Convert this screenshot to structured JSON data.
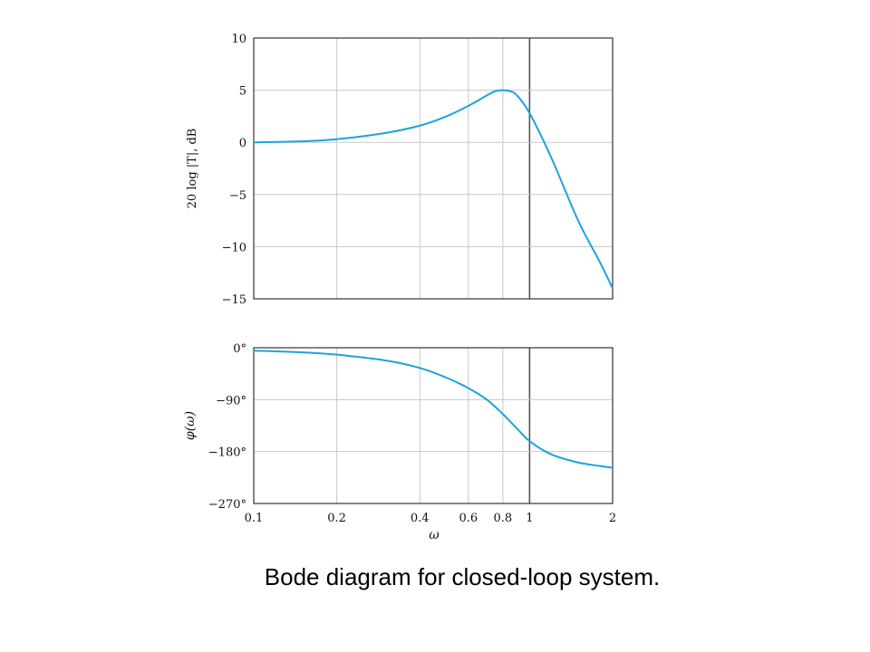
{
  "caption": "Bode diagram for closed-loop system.",
  "chart_data": [
    {
      "type": "line",
      "id": "magnitude",
      "xlabel": "",
      "ylabel": "20 log |T|, dB",
      "xscale": "log",
      "xlim": [
        0.1,
        2
      ],
      "ylim": [
        -15,
        10
      ],
      "xgrid": [
        0.1,
        0.2,
        0.4,
        0.6,
        0.8,
        1,
        2
      ],
      "ytick_values": [
        10,
        5,
        0,
        -5,
        -10,
        -15
      ],
      "ytick_labels": [
        "10",
        "5",
        "0",
        "−5",
        "−10",
        "−15"
      ],
      "grid": true,
      "color": "#1ca3dd",
      "x": [
        0.1,
        0.15,
        0.2,
        0.3,
        0.4,
        0.5,
        0.6,
        0.7,
        0.75,
        0.8,
        0.85,
        0.9,
        1.0,
        1.2,
        1.5,
        1.8,
        2.0
      ],
      "y": [
        0.0,
        0.1,
        0.3,
        0.9,
        1.6,
        2.5,
        3.5,
        4.5,
        4.9,
        5.0,
        4.9,
        4.5,
        2.8,
        -1.5,
        -7.5,
        -11.5,
        -14.0
      ]
    },
    {
      "type": "line",
      "id": "phase",
      "xlabel": "ω",
      "ylabel": "φ(ω)",
      "xscale": "log",
      "xlim": [
        0.1,
        2
      ],
      "ylim": [
        -270,
        0
      ],
      "xgrid": [
        0.1,
        0.2,
        0.4,
        0.6,
        0.8,
        1,
        2
      ],
      "xtick_values": [
        0.1,
        0.2,
        0.4,
        0.6,
        0.8,
        1,
        2
      ],
      "xtick_labels": [
        "0.1",
        "0.2",
        "0.4",
        "0.6",
        "0.8",
        "1",
        "2"
      ],
      "ytick_values": [
        0,
        -90,
        -180,
        -270
      ],
      "ytick_labels": [
        "0°",
        "−90°",
        "−180°",
        "−270°"
      ],
      "grid": true,
      "color": "#1ca3dd",
      "x": [
        0.1,
        0.15,
        0.2,
        0.3,
        0.4,
        0.5,
        0.6,
        0.7,
        0.8,
        0.9,
        1.0,
        1.2,
        1.5,
        1.8,
        2.0
      ],
      "y": [
        -5,
        -8,
        -12,
        -22,
        -35,
        -52,
        -70,
        -90,
        -115,
        -140,
        -162,
        -185,
        -199,
        -205,
        -208
      ]
    }
  ]
}
